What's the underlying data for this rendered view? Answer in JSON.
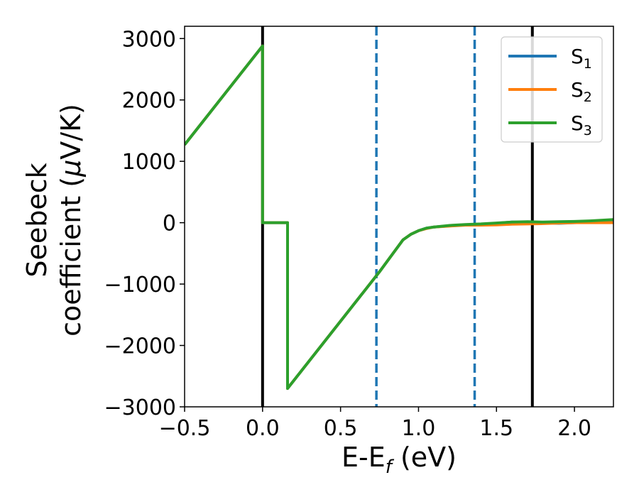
{
  "chart_data": {
    "type": "line",
    "xlabel": "E-E",
    "xlabel_sub": "f",
    "xlabel_unit": " (eV)",
    "ylabel_line1": "Seebeck",
    "ylabel_line2": "coefficient  (",
    "ylabel_mu": "μ",
    "ylabel_unit": "V/K)",
    "xlim": [
      -0.5,
      2.25
    ],
    "ylim": [
      -3000,
      3200
    ],
    "xticks": [
      -0.5,
      0.0,
      0.5,
      1.0,
      1.5,
      2.0
    ],
    "xtick_labels": [
      "−0.5",
      "0.0",
      "0.5",
      "1.0",
      "1.5",
      "2.0"
    ],
    "yticks": [
      -3000,
      -2000,
      -1000,
      0,
      1000,
      2000,
      3000
    ],
    "ytick_labels": [
      "−3000",
      "−2000",
      "−1000",
      "0",
      "1000",
      "2000",
      "3000"
    ],
    "grid": false,
    "legend_position": "top-right",
    "vertical_lines": [
      {
        "x": 0.0,
        "style": "solid",
        "color": "#000000"
      },
      {
        "x": 0.73,
        "style": "dashed",
        "color": "#1f77b4"
      },
      {
        "x": 1.36,
        "style": "dashed",
        "color": "#1f77b4"
      },
      {
        "x": 1.73,
        "style": "solid",
        "color": "#000000"
      }
    ],
    "series": [
      {
        "name_main": "S",
        "name_sub": "1",
        "color": "#1f77b4",
        "points": [
          [
            -0.5,
            1270
          ],
          [
            0.0,
            2880
          ],
          [
            0.0,
            0
          ],
          [
            0.16,
            0
          ],
          [
            0.16,
            -2700
          ],
          [
            0.75,
            -800
          ],
          [
            0.9,
            -280
          ],
          [
            0.95,
            -190
          ],
          [
            1.0,
            -130
          ],
          [
            1.05,
            -90
          ],
          [
            1.1,
            -70
          ],
          [
            1.2,
            -50
          ],
          [
            1.3,
            -35
          ],
          [
            1.4,
            -30
          ],
          [
            1.5,
            -10
          ],
          [
            1.6,
            10
          ],
          [
            1.7,
            5
          ],
          [
            1.8,
            -5
          ],
          [
            1.9,
            -10
          ],
          [
            2.0,
            0
          ],
          [
            2.1,
            10
          ],
          [
            2.25,
            20
          ]
        ]
      },
      {
        "name_main": "S",
        "name_sub": "2",
        "color": "#ff7f0e",
        "points": [
          [
            -0.5,
            1270
          ],
          [
            0.0,
            2880
          ],
          [
            0.0,
            0
          ],
          [
            0.16,
            0
          ],
          [
            0.16,
            -2700
          ],
          [
            0.75,
            -800
          ],
          [
            0.9,
            -280
          ],
          [
            0.95,
            -190
          ],
          [
            1.0,
            -130
          ],
          [
            1.05,
            -95
          ],
          [
            1.1,
            -70
          ],
          [
            1.2,
            -55
          ],
          [
            1.3,
            -40
          ],
          [
            1.4,
            -40
          ],
          [
            1.5,
            -35
          ],
          [
            1.6,
            -25
          ],
          [
            1.7,
            -20
          ],
          [
            1.8,
            -15
          ],
          [
            1.9,
            -5
          ],
          [
            2.0,
            0
          ],
          [
            2.1,
            0
          ],
          [
            2.25,
            0
          ]
        ]
      },
      {
        "name_main": "S",
        "name_sub": "3",
        "color": "#2ca02c",
        "points": [
          [
            -0.5,
            1270
          ],
          [
            0.0,
            2880
          ],
          [
            0.0,
            0
          ],
          [
            0.16,
            0
          ],
          [
            0.16,
            -2700
          ],
          [
            0.75,
            -800
          ],
          [
            0.9,
            -280
          ],
          [
            0.95,
            -190
          ],
          [
            1.0,
            -130
          ],
          [
            1.05,
            -90
          ],
          [
            1.1,
            -70
          ],
          [
            1.2,
            -45
          ],
          [
            1.3,
            -30
          ],
          [
            1.4,
            -20
          ],
          [
            1.5,
            -5
          ],
          [
            1.6,
            10
          ],
          [
            1.7,
            15
          ],
          [
            1.8,
            10
          ],
          [
            1.9,
            15
          ],
          [
            2.0,
            20
          ],
          [
            2.1,
            30
          ],
          [
            2.25,
            50
          ]
        ]
      }
    ]
  }
}
